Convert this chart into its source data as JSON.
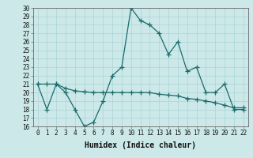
{
  "xlabel": "Humidex (Indice chaleur)",
  "x": [
    0,
    1,
    2,
    3,
    4,
    5,
    6,
    7,
    8,
    9,
    10,
    11,
    12,
    13,
    14,
    15,
    16,
    17,
    18,
    19,
    20,
    21,
    22
  ],
  "line1": [
    21,
    18,
    21,
    20,
    18,
    16,
    16.5,
    19,
    22,
    23,
    30,
    28.5,
    28,
    27,
    24.5,
    26,
    22.5,
    23,
    20,
    20,
    21,
    18,
    18
  ],
  "line2": [
    21,
    21,
    21,
    20.5,
    20.2,
    20.1,
    20.0,
    20.0,
    20.0,
    20.0,
    20.0,
    20.0,
    20.0,
    19.8,
    19.7,
    19.6,
    19.3,
    19.2,
    19.0,
    18.8,
    18.5,
    18.2,
    18.2
  ],
  "ylim": [
    16,
    30
  ],
  "yticks": [
    16,
    17,
    18,
    19,
    20,
    21,
    22,
    23,
    24,
    25,
    26,
    27,
    28,
    29,
    30
  ],
  "line_color": "#1a6b6b",
  "bg_color": "#cce8e8",
  "grid_color": "#aad4d4",
  "marker": "+",
  "marker_size": 4,
  "linewidth": 0.9,
  "tick_fontsize": 5.5,
  "xlabel_fontsize": 7
}
